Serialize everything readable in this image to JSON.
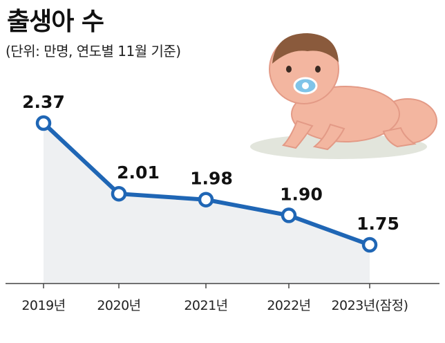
{
  "title": "출생아 수",
  "subtitle": "(단위: 만명, 연도별 11월 기준)",
  "colors": {
    "line": "#1f66b5",
    "area": "#eef0f2",
    "axis": "#444444",
    "baby_skin": "#f3b6a0",
    "baby_shade": "#e39a86",
    "baby_hair": "#8a5a3c",
    "pacifier": "#7fc4e8",
    "shadow": "#e2e5dc"
  },
  "chart_data": {
    "type": "line",
    "title": "출생아 수",
    "subtitle": "(단위: 만명, 연도별 11월 기준)",
    "categories": [
      "2019년",
      "2020년",
      "2021년",
      "2022년",
      "2023년(잠정)"
    ],
    "values": [
      2.37,
      2.01,
      1.98,
      1.9,
      1.75
    ],
    "value_labels": [
      "2.37",
      "2.01",
      "1.98",
      "1.90",
      "1.75"
    ],
    "xlabel": "",
    "ylabel": "",
    "legend": "none",
    "grid": false,
    "area_fill": true
  }
}
